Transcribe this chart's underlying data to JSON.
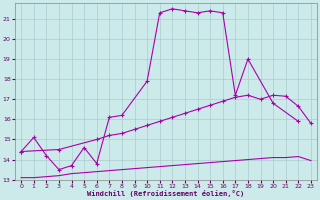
{
  "background_color": "#cceaea",
  "grid_color": "#aacccc",
  "line_color": "#aa00aa",
  "xlabel": "Windchill (Refroidissement éolien,°C)",
  "xlim": [
    -0.5,
    23.5
  ],
  "ylim": [
    13.0,
    21.8
  ],
  "yticks": [
    13,
    14,
    15,
    16,
    17,
    18,
    19,
    20,
    21
  ],
  "xticks": [
    0,
    1,
    2,
    3,
    4,
    5,
    6,
    7,
    8,
    9,
    10,
    11,
    12,
    13,
    14,
    15,
    16,
    17,
    18,
    19,
    20,
    21,
    22,
    23
  ],
  "line1_x": [
    0,
    1,
    2,
    3,
    4,
    5,
    6,
    7,
    8,
    10,
    11,
    12,
    13,
    14,
    15,
    16,
    17,
    18,
    20,
    22
  ],
  "line1_y": [
    14.4,
    15.1,
    14.2,
    13.5,
    13.7,
    14.6,
    13.8,
    16.1,
    16.2,
    17.9,
    21.3,
    21.5,
    21.4,
    21.3,
    21.4,
    21.3,
    17.2,
    19.0,
    16.8,
    15.9
  ],
  "line2_x": [
    0,
    3,
    6,
    7,
    8,
    9,
    10,
    11,
    12,
    13,
    14,
    15,
    16,
    17,
    18,
    19,
    20,
    21,
    22,
    23
  ],
  "line2_y": [
    14.4,
    14.5,
    15.0,
    15.2,
    15.3,
    15.5,
    15.7,
    15.9,
    16.1,
    16.3,
    16.5,
    16.7,
    16.9,
    17.1,
    17.2,
    17.0,
    17.2,
    17.15,
    16.65,
    15.8
  ],
  "line3_x": [
    0,
    1,
    2,
    3,
    4,
    5,
    6,
    7,
    8,
    9,
    10,
    11,
    12,
    13,
    14,
    15,
    16,
    17,
    18,
    19,
    20,
    21,
    22,
    23
  ],
  "line3_y": [
    13.1,
    13.1,
    13.15,
    13.2,
    13.3,
    13.35,
    13.4,
    13.45,
    13.5,
    13.55,
    13.6,
    13.65,
    13.7,
    13.75,
    13.8,
    13.85,
    13.9,
    13.95,
    14.0,
    14.05,
    14.1,
    14.1,
    14.15,
    13.95
  ]
}
